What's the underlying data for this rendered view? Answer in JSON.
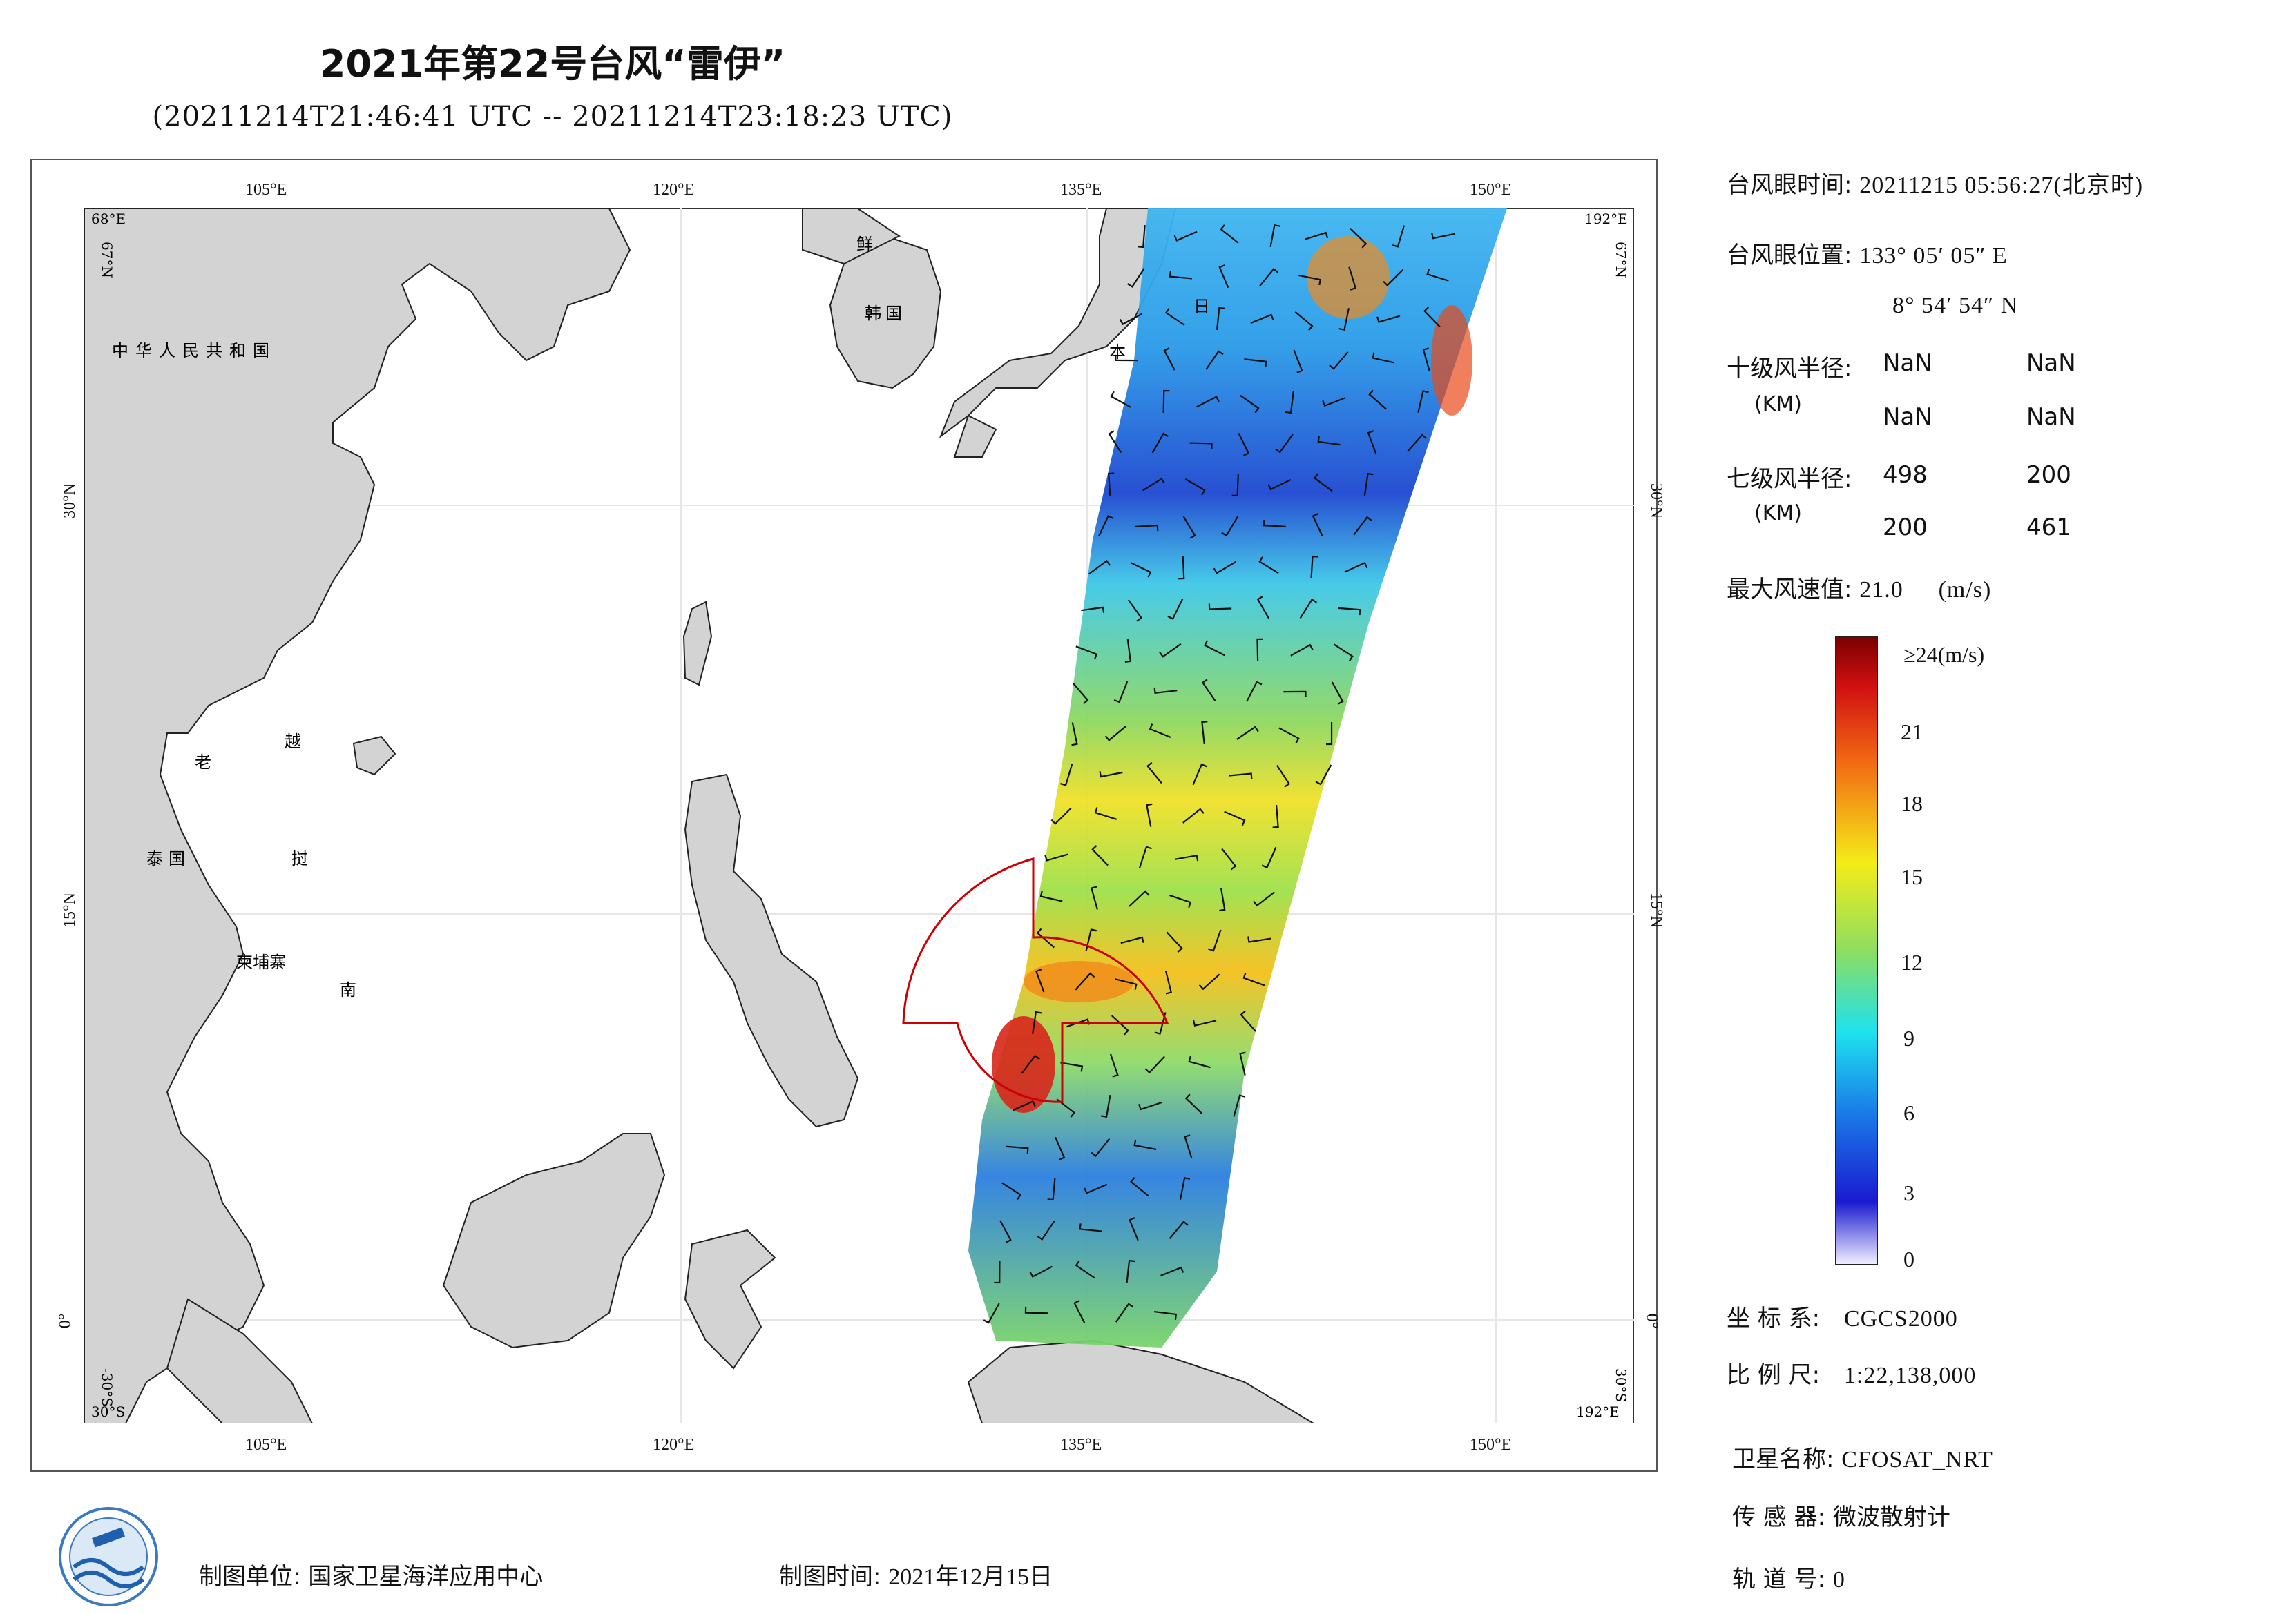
{
  "header": {
    "title": "2021年第22号台风“雷伊”",
    "subtitle": "(20211214T21:46:41 UTC -- 20211214T23:18:23 UTC)"
  },
  "map": {
    "lon_labels": [
      "105°E",
      "120°E",
      "135°E",
      "150°E"
    ],
    "lat_labels": [
      "30°N",
      "15°N",
      "0°"
    ],
    "corners": {
      "top_left": "68°E",
      "top_left_lat": "67°N",
      "top_right": "192°E",
      "top_right_lat": "67°N",
      "bottom_left": "30°S",
      "bottom_left_lat": "-30°S",
      "bottom_right": "192°E",
      "bottom_right_lat": "30°S"
    },
    "country_labels": {
      "china": "中华人民共和国",
      "laos": "老",
      "vietnam_1": "越",
      "vietnam_2": "南",
      "thailand": "泰国",
      "cambodia": "柬埔寨",
      "korea_1": "鲜",
      "korea_2": "韩国",
      "japan_1": "日",
      "japan_2": "本",
      "thailand_2": "挝"
    },
    "colors": {
      "land": "#d3d3d3",
      "ocean": "#ffffff",
      "wind_radius_circle": "#cc0000"
    }
  },
  "info": {
    "eye_time_label": "台风眼时间:",
    "eye_time_value": "20211215 05:56:27(北京时)",
    "eye_pos_label": "台风眼位置:",
    "eye_pos_lon": "133° 05′ 05″ E",
    "eye_pos_lat": "8° 54′ 54″ N",
    "r10_label": "十级风半径:",
    "r10_unit": "(KM)",
    "r10_values": [
      "NaN",
      "NaN",
      "NaN",
      "NaN"
    ],
    "r7_label": "七级风半径:",
    "r7_unit": "(KM)",
    "r7_values": [
      "498",
      "200",
      "200",
      "461"
    ],
    "max_wind_label": "最大风速值:",
    "max_wind_value": "21.0",
    "max_wind_unit": "(m/s)"
  },
  "colorbar": {
    "top_label": "≥24(m/s)",
    "ticks": [
      "21",
      "18",
      "15",
      "12",
      "9",
      "6",
      "3",
      "0"
    ],
    "unit": "(m/s)",
    "min": 0,
    "max": 24
  },
  "meta": {
    "crs_label": "坐 标 系:",
    "crs_value": "CGCS2000",
    "scale_label": "比 例 尺:",
    "scale_value": "1:22,138,000",
    "satellite_label": "卫星名称:",
    "satellite_value": "CFOSAT_NRT",
    "sensor_label": "传 感 器:",
    "sensor_value": "微波散射计",
    "orbit_label": "轨 道 号:",
    "orbit_value": "0"
  },
  "footer": {
    "unit_label": "制图单位:",
    "unit_value": "国家卫星海洋应用中心",
    "date_label": "制图时间:",
    "date_value": "2021年12月15日"
  }
}
